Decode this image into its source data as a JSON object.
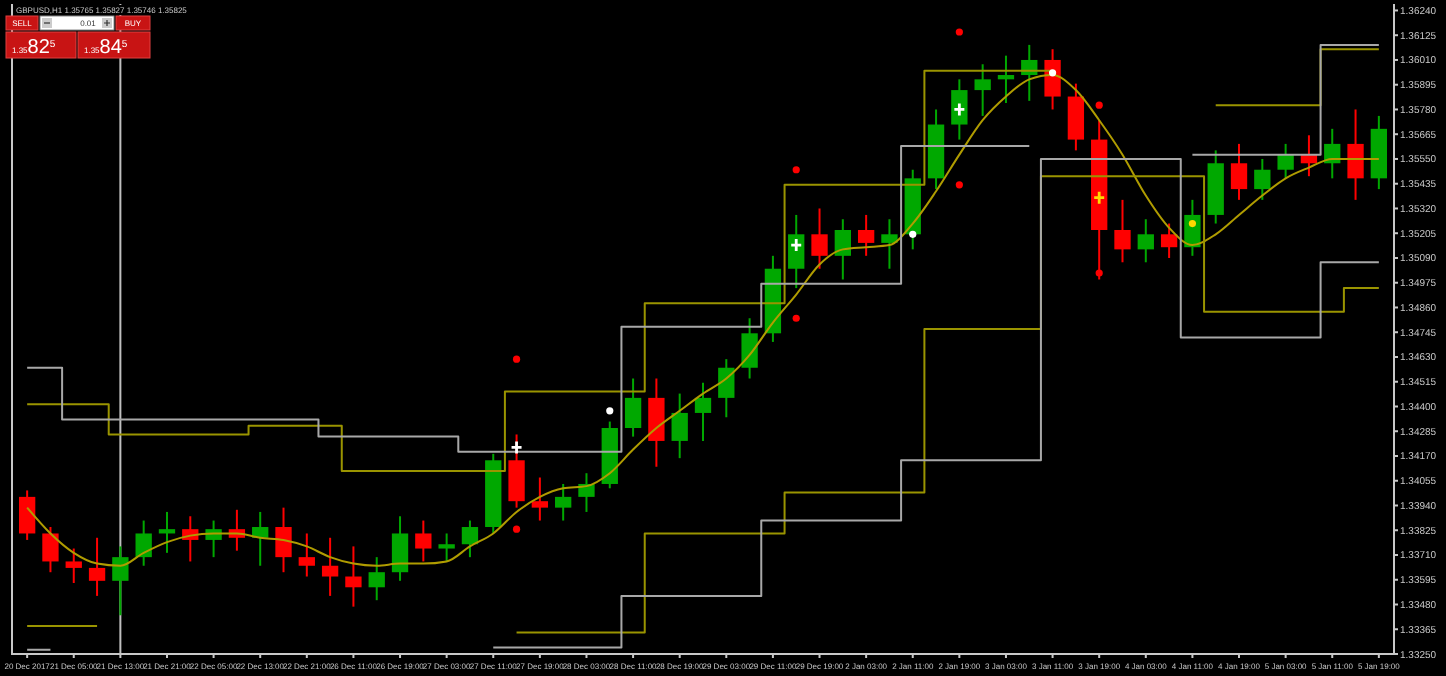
{
  "chart_data": {
    "type": "candlestick",
    "title": "GBPUSD,H1  1.35765 1.35827 1.35746 1.35825",
    "categories": [
      "20 Dec 2017",
      null,
      "21 Dec 05:00",
      null,
      "21 Dec 13:00",
      null,
      "21 Dec 21:00",
      null,
      "22 Dec 05:00",
      null,
      "22 Dec 13:00",
      null,
      "22 Dec 21:00",
      null,
      "26 Dec 11:00",
      null,
      "26 Dec 19:00",
      null,
      "27 Dec 03:00",
      null,
      "27 Dec 11:00",
      null,
      "27 Dec 19:00",
      null,
      "28 Dec 03:00",
      null,
      "28 Dec 11:00",
      null,
      "28 Dec 19:00",
      null,
      "29 Dec 03:00",
      null,
      "29 Dec 11:00",
      null,
      "29 Dec 19:00",
      null,
      "2 Jan 03:00",
      null,
      "2 Jan 11:00",
      null,
      "2 Jan 19:00",
      null,
      "3 Jan 03:00",
      null,
      "3 Jan 11:00",
      null,
      "3 Jan 19:00",
      null,
      "4 Jan 03:00",
      null,
      "4 Jan 11:00",
      null,
      "4 Jan 19:00",
      null,
      "5 Jan 03:00",
      null,
      "5 Jan 11:00",
      null,
      "5 Jan 19:00"
    ],
    "ohlc": [
      [
        1.3398,
        1.3401,
        1.3378,
        1.3381
      ],
      [
        1.3381,
        1.3384,
        1.3363,
        1.3368
      ],
      [
        1.3368,
        1.3374,
        1.3358,
        1.3365
      ],
      [
        1.3365,
        1.3379,
        1.3352,
        1.3359
      ],
      [
        1.3359,
        1.3375,
        1.3343,
        1.337
      ],
      [
        1.337,
        1.3387,
        1.3366,
        1.3381
      ],
      [
        1.3381,
        1.3391,
        1.3372,
        1.3383
      ],
      [
        1.3383,
        1.3389,
        1.3368,
        1.3378
      ],
      [
        1.3378,
        1.3387,
        1.337,
        1.3383
      ],
      [
        1.3383,
        1.3392,
        1.3373,
        1.3379
      ],
      [
        1.3379,
        1.3391,
        1.3366,
        1.3384
      ],
      [
        1.3384,
        1.3393,
        1.3363,
        1.337
      ],
      [
        1.337,
        1.3381,
        1.3361,
        1.3366
      ],
      [
        1.3366,
        1.3379,
        1.3352,
        1.3361
      ],
      [
        1.3361,
        1.3375,
        1.3347,
        1.3356
      ],
      [
        1.3356,
        1.337,
        1.335,
        1.3363
      ],
      [
        1.3363,
        1.3389,
        1.3359,
        1.3381
      ],
      [
        1.3381,
        1.3387,
        1.3368,
        1.3374
      ],
      [
        1.3374,
        1.3381,
        1.3368,
        1.3376
      ],
      [
        1.3376,
        1.3387,
        1.337,
        1.3384
      ],
      [
        1.3384,
        1.3418,
        1.3381,
        1.3415
      ],
      [
        1.3415,
        1.3427,
        1.3393,
        1.3396
      ],
      [
        1.3396,
        1.3407,
        1.3387,
        1.3393
      ],
      [
        1.3393,
        1.3404,
        1.3387,
        1.3398
      ],
      [
        1.3398,
        1.3409,
        1.3391,
        1.3404
      ],
      [
        1.3404,
        1.3433,
        1.3402,
        1.343
      ],
      [
        1.343,
        1.3453,
        1.3426,
        1.3444
      ],
      [
        1.3444,
        1.3453,
        1.3412,
        1.3424
      ],
      [
        1.3424,
        1.3446,
        1.3416,
        1.3437
      ],
      [
        1.3437,
        1.3451,
        1.3424,
        1.3444
      ],
      [
        1.3444,
        1.3462,
        1.3435,
        1.3458
      ],
      [
        1.3458,
        1.3481,
        1.3453,
        1.3474
      ],
      [
        1.3474,
        1.351,
        1.347,
        1.3504
      ],
      [
        1.3504,
        1.3529,
        1.3495,
        1.352
      ],
      [
        1.352,
        1.3532,
        1.3504,
        1.351
      ],
      [
        1.351,
        1.3527,
        1.3499,
        1.3522
      ],
      [
        1.3522,
        1.3529,
        1.351,
        1.3516
      ],
      [
        1.3516,
        1.3527,
        1.3504,
        1.352
      ],
      [
        1.352,
        1.355,
        1.3513,
        1.3546
      ],
      [
        1.3546,
        1.3578,
        1.3541,
        1.3571
      ],
      [
        1.3571,
        1.3592,
        1.3564,
        1.3587
      ],
      [
        1.3587,
        1.3599,
        1.3575,
        1.3592
      ],
      [
        1.3592,
        1.3603,
        1.3581,
        1.3594
      ],
      [
        1.3594,
        1.3608,
        1.3582,
        1.3601
      ],
      [
        1.3601,
        1.3606,
        1.3578,
        1.3584
      ],
      [
        1.3584,
        1.359,
        1.3559,
        1.3564
      ],
      [
        1.3564,
        1.3573,
        1.3499,
        1.3522
      ],
      [
        1.3522,
        1.3536,
        1.3507,
        1.3513
      ],
      [
        1.3513,
        1.3527,
        1.3507,
        1.352
      ],
      [
        1.352,
        1.3525,
        1.3509,
        1.3514
      ],
      [
        1.3514,
        1.3536,
        1.351,
        1.3529
      ],
      [
        1.3529,
        1.3559,
        1.3525,
        1.3553
      ],
      [
        1.3553,
        1.3562,
        1.3536,
        1.3541
      ],
      [
        1.3541,
        1.3555,
        1.3536,
        1.355
      ],
      [
        1.355,
        1.3562,
        1.3546,
        1.3557
      ],
      [
        1.3557,
        1.3566,
        1.3547,
        1.3553
      ],
      [
        1.3553,
        1.3569,
        1.3546,
        1.3562
      ],
      [
        1.3562,
        1.3578,
        1.3536,
        1.3546
      ],
      [
        1.3546,
        1.3575,
        1.3541,
        1.3569
      ]
    ],
    "series": [
      {
        "type": "line",
        "color": "#b09c00",
        "values": [
          1.3393,
          1.3381,
          1.3372,
          1.3367,
          1.3366,
          1.3372,
          1.3377,
          1.338,
          1.3381,
          1.3381,
          1.3379,
          1.3378,
          1.3375,
          1.337,
          1.3367,
          1.3366,
          1.3367,
          1.3367,
          1.3368,
          1.3375,
          1.3381,
          1.3391,
          1.3398,
          1.3402,
          1.3403,
          1.3409,
          1.342,
          1.343,
          1.3438,
          1.3446,
          1.3453,
          1.3464,
          1.3479,
          1.3492,
          1.3506,
          1.3513,
          1.3514,
          1.3515,
          1.3525,
          1.354,
          1.3557,
          1.3573,
          1.3584,
          1.3592,
          1.3594,
          1.3587,
          1.3573,
          1.3557,
          1.3538,
          1.3523,
          1.3515,
          1.352,
          1.3529,
          1.3538,
          1.3546,
          1.3551,
          1.3555,
          1.3555,
          1.3555
        ]
      },
      {
        "type": "step",
        "color": "#9a9400",
        "values": [
          1.3441,
          1.3441,
          1.3441,
          1.3441,
          1.3427,
          1.3427,
          1.3427,
          1.3427,
          1.3427,
          1.3427,
          1.3431,
          1.3431,
          1.3431,
          1.3431,
          1.341,
          1.341,
          1.341,
          1.341,
          1.341,
          1.341,
          1.341,
          1.3447,
          1.3447,
          1.3447,
          1.3447,
          1.3447,
          1.3447,
          1.3488,
          1.3488,
          1.3488,
          1.3488,
          1.3488,
          1.3488,
          1.3543,
          1.3543,
          1.3543,
          1.3543,
          1.3543,
          1.3543,
          1.3596,
          1.3596,
          1.3596,
          1.3596,
          1.3596,
          1.3596,
          null,
          null,
          null,
          null,
          null,
          null,
          1.358,
          1.358,
          1.358,
          1.358,
          1.358,
          1.3606,
          1.3606,
          1.3606
        ]
      },
      {
        "type": "step",
        "color": "#a8a8a8",
        "values": [
          1.3458,
          1.3458,
          1.3434,
          1.3434,
          1.3434,
          1.3434,
          1.3434,
          1.3434,
          1.3434,
          1.3434,
          1.3434,
          1.3434,
          1.3434,
          1.3426,
          1.3426,
          1.3426,
          1.3426,
          1.3426,
          1.3426,
          1.3419,
          1.3419,
          1.3419,
          1.3419,
          1.3419,
          1.3419,
          1.3419,
          1.3477,
          1.3477,
          1.3477,
          1.3477,
          1.3477,
          1.3477,
          1.3497,
          1.3497,
          1.3497,
          1.3497,
          1.3497,
          1.3497,
          1.3561,
          1.3561,
          1.3561,
          1.3561,
          1.3561,
          1.3561,
          null,
          null,
          null,
          null,
          null,
          null,
          1.3557,
          1.3557,
          1.3557,
          1.3557,
          1.3557,
          1.3557,
          1.3608,
          1.3608,
          1.3608
        ]
      },
      {
        "type": "step",
        "color": "#9a9400",
        "values": [
          1.3338,
          1.3338,
          1.3338,
          1.3338,
          null,
          null,
          null,
          null,
          null,
          null,
          null,
          null,
          null,
          null,
          null,
          null,
          null,
          null,
          null,
          null,
          null,
          1.3335,
          1.3335,
          1.3335,
          1.3335,
          1.3335,
          1.3335,
          1.3381,
          1.3381,
          1.3381,
          1.3381,
          1.3381,
          1.3381,
          1.34,
          1.34,
          1.34,
          1.34,
          1.34,
          1.34,
          1.3476,
          1.3476,
          1.3476,
          1.3476,
          1.3476,
          1.3547,
          1.3547,
          1.3547,
          1.3547,
          1.3547,
          1.3547,
          1.3547,
          1.3484,
          1.3484,
          1.3484,
          1.3484,
          1.3484,
          1.3484,
          1.3495,
          1.3495
        ]
      },
      {
        "type": "step",
        "color": "#a8a8a8",
        "values": [
          1.3327,
          1.3327,
          null,
          null,
          null,
          null,
          null,
          null,
          null,
          null,
          null,
          null,
          null,
          null,
          null,
          null,
          null,
          null,
          null,
          null,
          1.3328,
          1.3328,
          1.3328,
          1.3328,
          1.3328,
          1.3328,
          1.3352,
          1.3352,
          1.3352,
          1.3352,
          1.3352,
          1.3352,
          1.3387,
          1.3387,
          1.3387,
          1.3387,
          1.3387,
          1.3387,
          1.3415,
          1.3415,
          1.3415,
          1.3415,
          1.3415,
          1.3415,
          1.3555,
          1.3555,
          1.3555,
          1.3555,
          1.3555,
          1.3555,
          1.3472,
          1.3472,
          1.3472,
          1.3472,
          1.3472,
          1.3472,
          1.3507,
          1.3507,
          1.3507
        ]
      },
      {
        "type": "scatter",
        "marker": "circle",
        "color": "#ff0000",
        "values": [
          null,
          null,
          null,
          null,
          null,
          null,
          null,
          null,
          null,
          null,
          null,
          null,
          null,
          null,
          null,
          null,
          null,
          null,
          null,
          null,
          null,
          1.3462,
          null,
          null,
          null,
          null,
          null,
          null,
          null,
          null,
          null,
          null,
          null,
          1.355,
          null,
          null,
          null,
          null,
          null,
          null,
          1.3614,
          null,
          null,
          null,
          null,
          null,
          1.358,
          null,
          null,
          null,
          null,
          null,
          null,
          null,
          null,
          null,
          null,
          null,
          null
        ]
      },
      {
        "type": "scatter",
        "marker": "circle",
        "color": "#ff0000",
        "values": [
          null,
          null,
          null,
          null,
          null,
          null,
          null,
          null,
          null,
          null,
          null,
          null,
          null,
          null,
          null,
          null,
          null,
          null,
          null,
          null,
          null,
          1.3383,
          null,
          null,
          null,
          null,
          null,
          null,
          null,
          null,
          null,
          null,
          null,
          1.3481,
          null,
          null,
          null,
          null,
          null,
          null,
          1.3543,
          null,
          null,
          null,
          null,
          null,
          1.3502,
          null,
          null,
          null,
          null,
          null,
          null,
          null,
          null,
          null,
          null,
          null,
          null
        ]
      },
      {
        "type": "scatter",
        "marker": "cross",
        "color": "#ffffff",
        "values": [
          null,
          null,
          null,
          null,
          null,
          null,
          null,
          null,
          null,
          null,
          null,
          null,
          null,
          null,
          null,
          null,
          null,
          null,
          null,
          null,
          null,
          1.3421,
          null,
          null,
          null,
          null,
          null,
          null,
          null,
          null,
          null,
          null,
          null,
          1.3515,
          null,
          null,
          null,
          null,
          null,
          null,
          1.3578,
          null,
          null,
          null,
          null,
          null,
          null,
          null,
          null,
          null,
          null,
          null,
          null,
          null,
          null,
          null,
          null,
          null,
          null
        ]
      },
      {
        "type": "scatter",
        "marker": "circle",
        "color": "#ffffff",
        "values": [
          null,
          null,
          null,
          null,
          null,
          null,
          null,
          null,
          null,
          null,
          null,
          null,
          null,
          null,
          null,
          null,
          null,
          null,
          null,
          null,
          null,
          null,
          null,
          null,
          null,
          1.3438,
          null,
          null,
          null,
          null,
          null,
          null,
          null,
          null,
          null,
          null,
          null,
          null,
          1.352,
          null,
          null,
          null,
          null,
          null,
          1.3595,
          null,
          null,
          null,
          null,
          null,
          null,
          null,
          null,
          null,
          null,
          null,
          null,
          null,
          null
        ]
      },
      {
        "type": "scatter",
        "marker": "cross",
        "color": "#ffd800",
        "values": [
          null,
          null,
          null,
          null,
          null,
          null,
          null,
          null,
          null,
          null,
          null,
          null,
          null,
          null,
          null,
          null,
          null,
          null,
          null,
          null,
          null,
          null,
          null,
          null,
          null,
          null,
          null,
          null,
          null,
          null,
          null,
          null,
          null,
          null,
          null,
          null,
          null,
          null,
          null,
          null,
          null,
          null,
          null,
          null,
          null,
          null,
          1.3537,
          null,
          null,
          null,
          null,
          null,
          null,
          null,
          null,
          null,
          null,
          null,
          null
        ]
      },
      {
        "type": "scatter",
        "marker": "circle",
        "color": "#ffd800",
        "values": [
          null,
          null,
          null,
          null,
          null,
          null,
          null,
          null,
          null,
          null,
          null,
          null,
          null,
          null,
          null,
          null,
          null,
          null,
          null,
          null,
          null,
          null,
          null,
          null,
          null,
          null,
          null,
          null,
          null,
          null,
          null,
          null,
          null,
          null,
          null,
          null,
          null,
          null,
          null,
          null,
          null,
          null,
          null,
          null,
          null,
          null,
          null,
          null,
          null,
          null,
          1.3525,
          null,
          null,
          null,
          null,
          null,
          null,
          null,
          null
        ]
      }
    ],
    "ylim": [
      1.3325,
      1.3627
    ],
    "yticks": [
      {
        "value": 1.3325,
        "label": "1.33250"
      },
      {
        "value": 1.33365,
        "label": "1.33365"
      },
      {
        "value": 1.3348,
        "label": "1.33480"
      },
      {
        "value": 1.33595,
        "label": "1.33595"
      },
      {
        "value": 1.3371,
        "label": "1.33710"
      },
      {
        "value": 1.33825,
        "label": "1.33825"
      },
      {
        "value": 1.3394,
        "label": "1.33940"
      },
      {
        "value": 1.34055,
        "label": "1.34055"
      },
      {
        "value": 1.3417,
        "label": "1.34170"
      },
      {
        "value": 1.34285,
        "label": "1.34285"
      },
      {
        "value": 1.344,
        "label": "1.34400"
      },
      {
        "value": 1.34515,
        "label": "1.34515"
      },
      {
        "value": 1.3463,
        "label": "1.34630"
      },
      {
        "value": 1.34745,
        "label": "1.34745"
      },
      {
        "value": 1.3486,
        "label": "1.34860"
      },
      {
        "value": 1.34975,
        "label": "1.34975"
      },
      {
        "value": 1.3509,
        "label": "1.35090"
      },
      {
        "value": 1.35205,
        "label": "1.35205"
      },
      {
        "value": 1.3532,
        "label": "1.35320"
      },
      {
        "value": 1.35435,
        "label": "1.35435"
      },
      {
        "value": 1.3555,
        "label": "1.35550"
      },
      {
        "value": 1.35665,
        "label": "1.35665"
      },
      {
        "value": 1.3578,
        "label": "1.35780"
      },
      {
        "value": 1.35895,
        "label": "1.35895"
      },
      {
        "value": 1.3601,
        "label": "1.36010"
      },
      {
        "value": 1.36125,
        "label": "1.36125"
      },
      {
        "value": 1.3624,
        "label": "1.36240"
      }
    ],
    "ref_lines": [
      {
        "axis": "x",
        "value": "21 Dec 13:00",
        "color": "#c0c0c0"
      }
    ],
    "annotations": [
      "SELL",
      "0.01",
      "BUY",
      "1.3582$^{5}$",
      "1.3584$^{5}$"
    ],
    "grid": false
  }
}
